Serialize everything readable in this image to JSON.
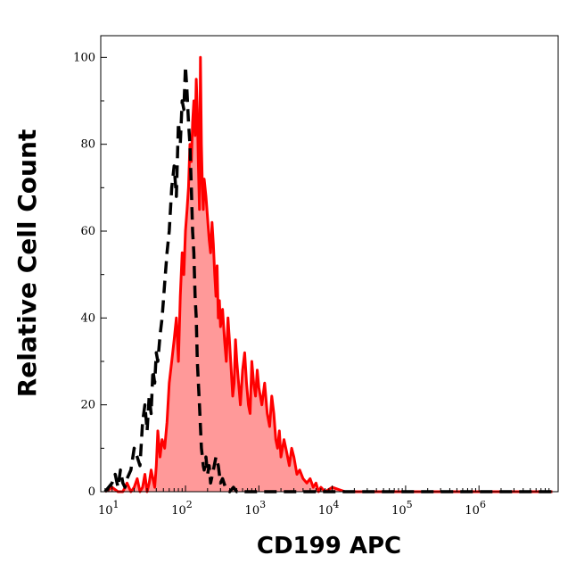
{
  "chart_data": {
    "type": "area",
    "xlabel": "CD199 APC",
    "ylabel": "Relative Cell Count",
    "x_scale": "log",
    "xlim": [
      7,
      12000000
    ],
    "ylim": [
      0,
      105
    ],
    "x_ticks": [
      {
        "value": 10,
        "base": "10",
        "exp": "1"
      },
      {
        "value": 100,
        "base": "10",
        "exp": "2"
      },
      {
        "value": 1000,
        "base": "10",
        "exp": "3"
      },
      {
        "value": 10000,
        "base": "10",
        "exp": "4"
      },
      {
        "value": 100000,
        "base": "10",
        "exp": "5"
      },
      {
        "value": 1000000,
        "base": "10",
        "exp": "6"
      }
    ],
    "y_ticks": [
      0,
      20,
      40,
      60,
      80,
      100
    ],
    "grid": false,
    "legend": "none",
    "series": [
      {
        "style": "dashed",
        "color": "#000000",
        "x": [
          8,
          10,
          11,
          12,
          13,
          14,
          15,
          16,
          18,
          20,
          22,
          24,
          26,
          28,
          30,
          32,
          34,
          36,
          38,
          40,
          42,
          45,
          48,
          52,
          56,
          60,
          65,
          70,
          75,
          80,
          85,
          90,
          95,
          100,
          105,
          110,
          115,
          120,
          125,
          130,
          135,
          140,
          145,
          150,
          155,
          160,
          165,
          170,
          175,
          180,
          190,
          200,
          210,
          220,
          240,
          260,
          280,
          300,
          320,
          350,
          400,
          450,
          500,
          600,
          800,
          1000,
          2000,
          5000,
          10000,
          100000,
          1000000,
          10000000
        ],
        "y": [
          0,
          2,
          4,
          1,
          5,
          2,
          1,
          3,
          5,
          10,
          8,
          6,
          16,
          20,
          14,
          22,
          18,
          28,
          25,
          32,
          30,
          36,
          40,
          48,
          55,
          60,
          70,
          75,
          68,
          85,
          80,
          90,
          88,
          98,
          92,
          85,
          80,
          70,
          60,
          55,
          45,
          40,
          30,
          25,
          20,
          15,
          10,
          8,
          6,
          5,
          8,
          4,
          6,
          2,
          5,
          8,
          6,
          2,
          3,
          1,
          0,
          1,
          0,
          0,
          0,
          0,
          0,
          0,
          0,
          0,
          0,
          0
        ]
      },
      {
        "style": "solid-filled",
        "color": "#ff0000",
        "fill": "#ff9999",
        "x": [
          8,
          10,
          12,
          14,
          16,
          18,
          20,
          22,
          24,
          26,
          28,
          30,
          32,
          34,
          36,
          38,
          40,
          42,
          45,
          48,
          52,
          56,
          60,
          65,
          70,
          75,
          80,
          85,
          90,
          95,
          100,
          105,
          110,
          115,
          120,
          125,
          130,
          135,
          140,
          145,
          150,
          155,
          160,
          165,
          170,
          175,
          180,
          190,
          200,
          210,
          220,
          230,
          240,
          250,
          260,
          270,
          280,
          290,
          300,
          320,
          340,
          360,
          380,
          400,
          420,
          440,
          460,
          480,
          500,
          530,
          560,
          600,
          640,
          680,
          720,
          760,
          800,
          850,
          900,
          950,
          1000,
          1100,
          1200,
          1300,
          1400,
          1500,
          1600,
          1700,
          1800,
          1900,
          2000,
          2200,
          2400,
          2600,
          2800,
          3000,
          3300,
          3600,
          4000,
          4500,
          5000,
          5500,
          6000,
          6500,
          7000,
          8000,
          10000,
          15000,
          20000,
          50000,
          100000,
          300000,
          1000000,
          10000000
        ],
        "y": [
          0,
          1,
          0,
          0,
          2,
          0,
          1,
          3,
          0,
          1,
          4,
          0,
          2,
          5,
          3,
          1,
          6,
          14,
          8,
          12,
          10,
          16,
          25,
          30,
          35,
          40,
          30,
          45,
          55,
          50,
          60,
          65,
          70,
          80,
          76,
          85,
          90,
          82,
          95,
          88,
          75,
          65,
          100,
          80,
          70,
          65,
          72,
          68,
          63,
          58,
          55,
          62,
          57,
          50,
          45,
          52,
          40,
          44,
          38,
          42,
          35,
          30,
          40,
          34,
          28,
          22,
          25,
          35,
          30,
          25,
          20,
          28,
          32,
          25,
          20,
          18,
          30,
          25,
          22,
          28,
          24,
          20,
          25,
          18,
          15,
          22,
          18,
          12,
          10,
          14,
          8,
          12,
          9,
          6,
          10,
          8,
          4,
          5,
          3,
          2,
          3,
          1,
          2,
          0,
          1,
          0,
          1,
          0,
          0,
          0,
          0,
          0,
          0,
          0
        ]
      }
    ]
  }
}
